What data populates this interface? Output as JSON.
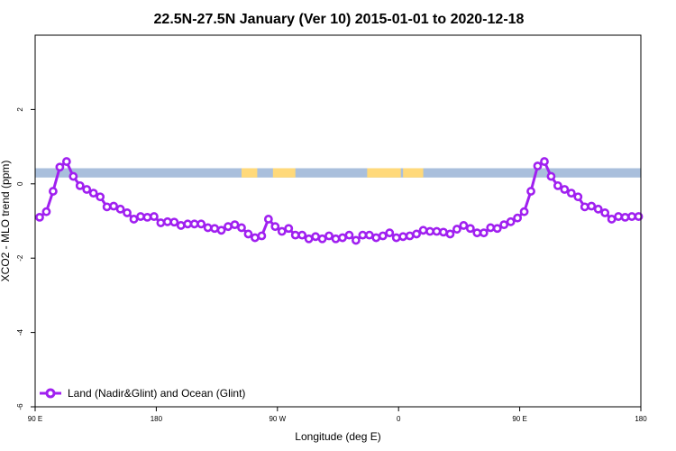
{
  "chart_data": {
    "type": "line",
    "title": "22.5N-27.5N January (Ver 10)   2015-01-01 to 2020-12-18",
    "xlabel": "Longitude (deg E)",
    "ylabel": "XCO2 - MLO trend (ppm)",
    "xlim": [
      -90,
      180
    ],
    "ylim": [
      -6,
      4
    ],
    "x_ticks": [
      -90,
      -36,
      18,
      72,
      126,
      180
    ],
    "x_tick_labels": [
      "90 E",
      "180",
      "90 W",
      "0",
      "90 E",
      "180"
    ],
    "y_ticks": [
      -6,
      -4,
      -2,
      0,
      2
    ],
    "y_tick_labels": [
      "-6",
      "-4",
      "-2",
      "0",
      "2"
    ],
    "legend_position": "bottom-left",
    "land_strip": {
      "y_range": [
        0.17,
        0.42
      ],
      "ocean_color": "#a9bfdc",
      "land_color": "#ffd97a",
      "land_spans": [
        [
          2,
          9
        ],
        [
          16,
          26
        ],
        [
          58,
          73
        ],
        [
          74,
          83
        ]
      ]
    },
    "series": [
      {
        "name": "Land (Nadir&Glint) and Ocean (Glint)",
        "color": "#a020f0",
        "x": [
          -88,
          -85,
          -82,
          -79,
          -76,
          -73,
          -70,
          -67,
          -64,
          -61,
          -58,
          -55,
          -52,
          -49,
          -46,
          -43,
          -40,
          -37,
          -34,
          -31,
          -28,
          -25,
          -22,
          -19,
          -16,
          -13,
          -10,
          -7,
          -4,
          -1,
          2,
          5,
          8,
          11,
          14,
          17,
          20,
          23,
          26,
          29,
          32,
          35,
          38,
          41,
          44,
          47,
          50,
          53,
          56,
          59,
          62,
          65,
          68,
          71,
          74,
          77,
          80,
          83,
          86,
          89,
          92,
          95,
          98,
          101,
          104,
          107,
          110,
          113,
          116,
          119,
          122,
          125,
          128,
          131,
          134,
          137,
          140,
          143,
          146,
          149,
          152,
          155,
          158,
          161,
          164,
          167,
          170,
          173,
          176,
          179
        ],
        "y": [
          -0.9,
          -0.75,
          -0.2,
          0.45,
          0.6,
          0.2,
          -0.05,
          -0.15,
          -0.25,
          -0.35,
          -0.62,
          -0.6,
          -0.68,
          -0.78,
          -0.95,
          -0.88,
          -0.9,
          -0.88,
          -1.05,
          -1.02,
          -1.03,
          -1.12,
          -1.08,
          -1.08,
          -1.08,
          -1.18,
          -1.2,
          -1.25,
          -1.15,
          -1.1,
          -1.18,
          -1.35,
          -1.45,
          -1.4,
          -0.95,
          -1.15,
          -1.28,
          -1.2,
          -1.38,
          -1.38,
          -1.48,
          -1.42,
          -1.48,
          -1.4,
          -1.48,
          -1.45,
          -1.38,
          -1.52,
          -1.38,
          -1.38,
          -1.45,
          -1.4,
          -1.32,
          -1.45,
          -1.42,
          -1.4,
          -1.35,
          -1.25,
          -1.28,
          -1.28,
          -1.3,
          -1.35,
          -1.22,
          -1.12,
          -1.2,
          -1.32,
          -1.32,
          -1.18,
          -1.2,
          -1.1,
          -1.02,
          -0.92,
          -0.75,
          -0.2,
          0.48,
          0.6,
          0.2,
          -0.05,
          -0.15,
          -0.25,
          -0.35,
          -0.62,
          -0.6,
          -0.68,
          -0.78,
          -0.95,
          -0.88,
          -0.9,
          -0.88,
          -0.88
        ]
      }
    ]
  }
}
